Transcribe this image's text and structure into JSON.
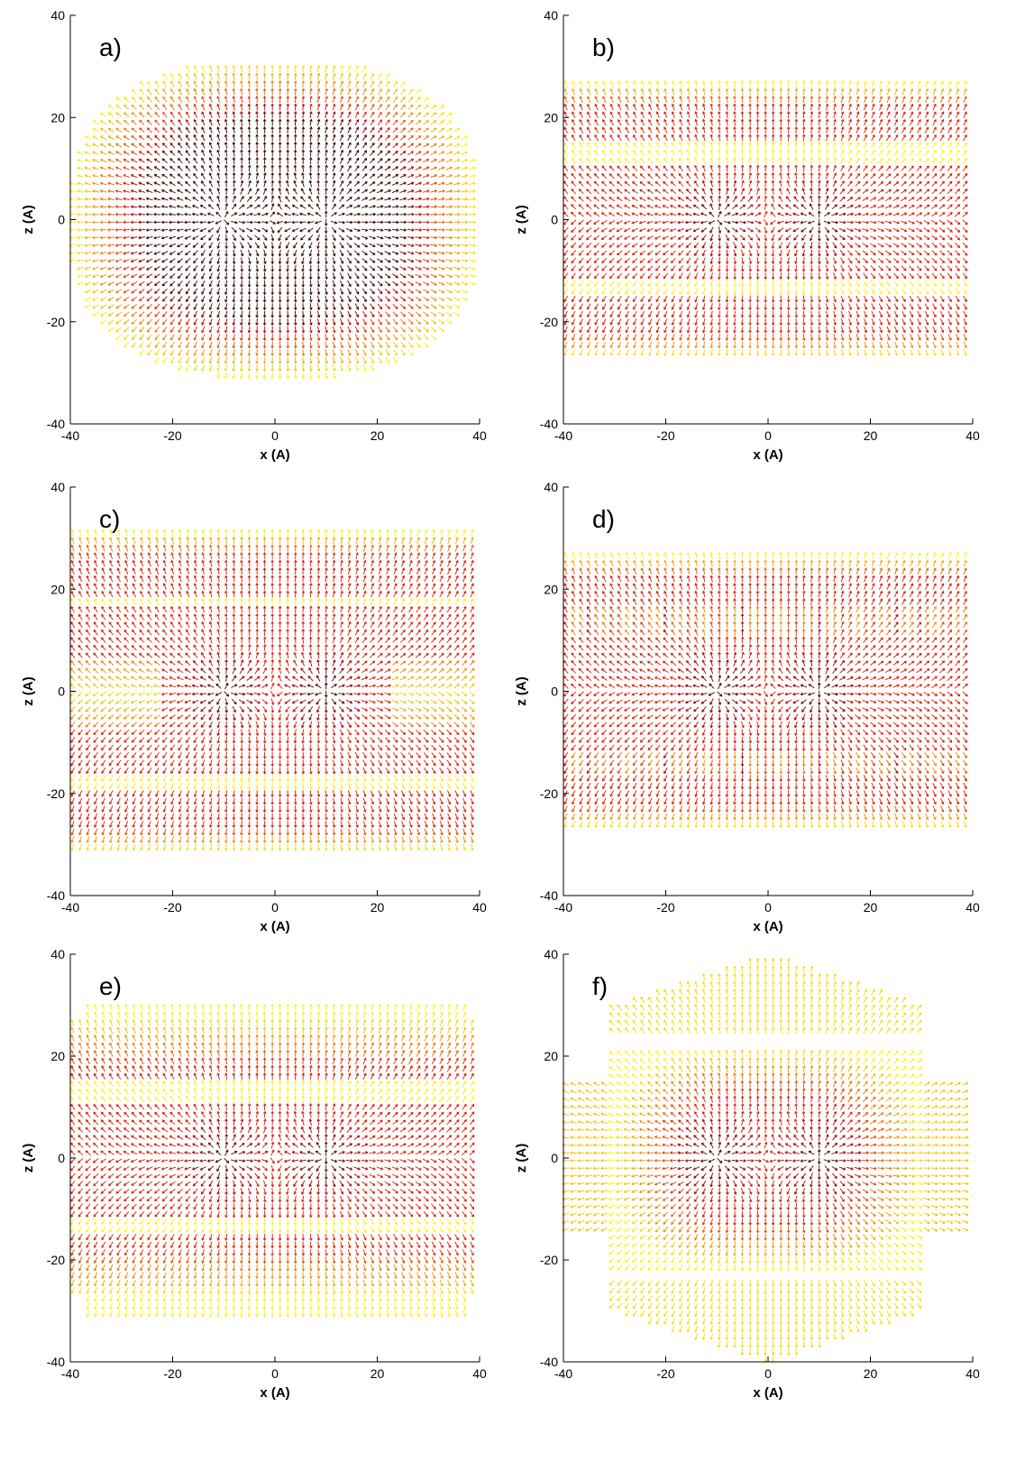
{
  "chart_data": [
    {
      "type": "quiver",
      "panel_label": "a)",
      "xlabel": "x (A)",
      "ylabel": "z (A)",
      "xlim": [
        -40,
        40
      ],
      "ylim": [
        -40,
        40
      ],
      "xticks": [
        -40,
        -20,
        0,
        20,
        40
      ],
      "yticks": [
        -40,
        -20,
        0,
        20,
        40
      ]
    },
    {
      "type": "quiver",
      "panel_label": "b)",
      "xlabel": "x (A)",
      "ylabel": "z (A)",
      "xlim": [
        -40,
        40
      ],
      "ylim": [
        -40,
        40
      ],
      "xticks": [
        -40,
        -20,
        0,
        20,
        40
      ],
      "yticks": [
        -40,
        -20,
        0,
        20,
        40
      ]
    },
    {
      "type": "quiver",
      "panel_label": "c)",
      "xlabel": "x (A)",
      "ylabel": "z (A)",
      "xlim": [
        -40,
        40
      ],
      "ylim": [
        -40,
        40
      ],
      "xticks": [
        -40,
        -20,
        0,
        20,
        40
      ],
      "yticks": [
        -40,
        -20,
        0,
        20,
        40
      ]
    },
    {
      "type": "quiver",
      "panel_label": "d)",
      "xlabel": "x (A)",
      "ylabel": "z (A)",
      "xlim": [
        -40,
        40
      ],
      "ylim": [
        -40,
        40
      ],
      "xticks": [
        -40,
        -20,
        0,
        20,
        40
      ],
      "yticks": [
        -40,
        -20,
        0,
        20,
        40
      ]
    },
    {
      "type": "quiver",
      "panel_label": "e)",
      "xlabel": "x (A)",
      "ylabel": "z (A)",
      "xlim": [
        -40,
        40
      ],
      "ylim": [
        -40,
        40
      ],
      "xticks": [
        -40,
        -20,
        0,
        20,
        40
      ],
      "yticks": [
        -40,
        -20,
        0,
        20,
        40
      ]
    },
    {
      "type": "quiver",
      "panel_label": "f)",
      "xlabel": "x (A)",
      "ylabel": "z (A)",
      "xlim": [
        -40,
        40
      ],
      "ylim": [
        -40,
        40
      ],
      "xticks": [
        -40,
        -20,
        0,
        20,
        40
      ],
      "yticks": [
        -40,
        -20,
        0,
        20,
        40
      ]
    }
  ]
}
